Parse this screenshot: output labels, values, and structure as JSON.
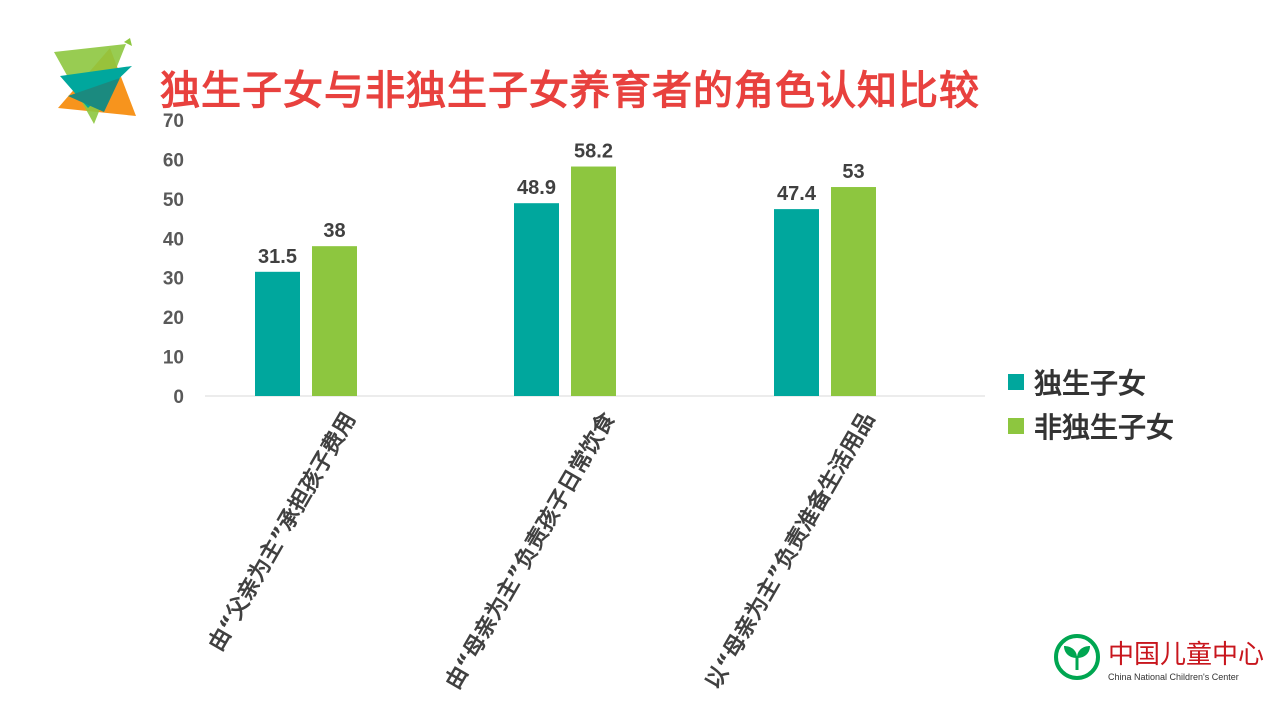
{
  "title": "独生子女与非独生子女养育者的角色认知比较",
  "colors": {
    "title": "#e8413e",
    "series_1": "#00a79d",
    "series_2": "#8dc63f",
    "axis_text": "#595959",
    "label_text": "#404040"
  },
  "chart_data": {
    "type": "bar",
    "title": "",
    "categories": [
      "由“父亲为主”承担孩子费用",
      "由“母亲为主”负责孩子日常饮食",
      "以“母亲为主”负责准备生活用品"
    ],
    "series": [
      {
        "name": "独生子女",
        "values": [
          31.5,
          48.9,
          47.4
        ]
      },
      {
        "name": "非独生子女",
        "values": [
          38,
          58.2,
          53
        ]
      }
    ],
    "ylim": [
      0,
      70
    ],
    "yticks": [
      0,
      10,
      20,
      30,
      40,
      50,
      60,
      70
    ],
    "grid": false,
    "legend": "right"
  },
  "legend": {
    "items": [
      {
        "label": "独生子女"
      },
      {
        "label": "非独生子女"
      }
    ]
  },
  "logo": {
    "name_cn": "中国儿童中心",
    "name_en": "China National Children's Center"
  }
}
